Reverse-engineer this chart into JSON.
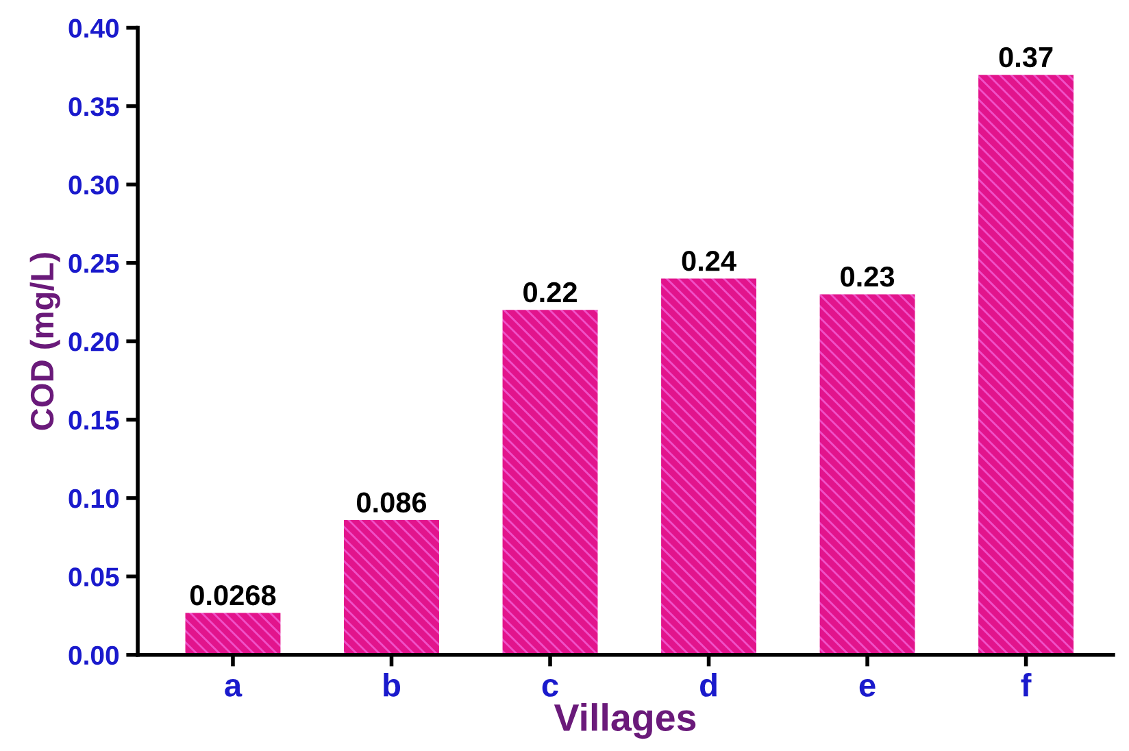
{
  "chart_data": {
    "type": "bar",
    "xlabel": "Villages",
    "ylabel": "COD (mg/L)",
    "categories": [
      "a",
      "b",
      "c",
      "d",
      "e",
      "f"
    ],
    "values": [
      0.0268,
      0.086,
      0.22,
      0.24,
      0.23,
      0.37
    ],
    "color": "#e2148c",
    "ylim": [
      0,
      0.4
    ],
    "yticks": [
      {
        "value": 0,
        "label": "0.00"
      },
      {
        "value": 0.05,
        "label": "0.05"
      },
      {
        "value": 0.1,
        "label": "0.10"
      },
      {
        "value": 0.15,
        "label": "0.15"
      },
      {
        "value": 0.2,
        "label": "0.20"
      },
      {
        "value": 0.25,
        "label": "0.25"
      },
      {
        "value": 0.3,
        "label": "0.30"
      },
      {
        "value": 0.35,
        "label": "0.35"
      },
      {
        "value": 0.4,
        "label": "0.40"
      }
    ],
    "data_labels": true,
    "grid": false,
    "legend": false
  }
}
